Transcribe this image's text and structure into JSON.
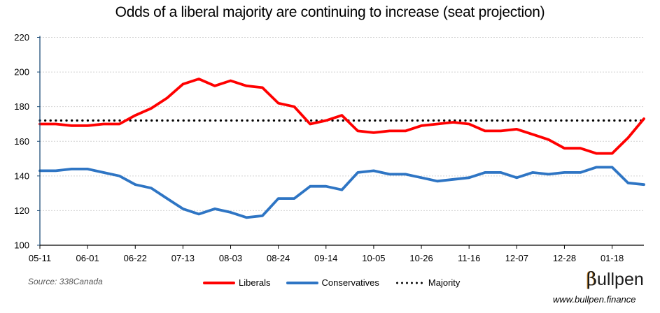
{
  "chart_data": {
    "type": "line",
    "title": "Odds of a liberal majority are continuing to increase (seat projection)",
    "xlabel": "",
    "ylabel": "",
    "ylim": [
      100,
      220
    ],
    "yticks": [
      100,
      120,
      140,
      160,
      180,
      200,
      220
    ],
    "grid": true,
    "legend_position": "bottom",
    "x": [
      "05-11",
      "05-18",
      "05-25",
      "06-01",
      "06-08",
      "06-15",
      "06-22",
      "06-29",
      "07-06",
      "07-13",
      "07-20",
      "07-27",
      "08-03",
      "08-10",
      "08-17",
      "08-24",
      "08-31",
      "09-07",
      "09-14",
      "09-21",
      "09-28",
      "10-05",
      "10-12",
      "10-19",
      "10-26",
      "11-02",
      "11-09",
      "11-16",
      "11-23",
      "11-30",
      "12-07",
      "12-14",
      "12-21",
      "12-28",
      "01-04",
      "01-11",
      "01-18",
      "01-25",
      "02-01"
    ],
    "xtick_labels": [
      "05-11",
      "06-01",
      "06-22",
      "07-13",
      "08-03",
      "08-24",
      "09-14",
      "10-05",
      "10-26",
      "11-16",
      "12-07",
      "12-28",
      "01-18"
    ],
    "series": [
      {
        "name": "Liberals",
        "color": "#ff0000",
        "style": "solid",
        "values": [
          170,
          170,
          169,
          169,
          170,
          170,
          175,
          179,
          185,
          193,
          196,
          192,
          195,
          192,
          191,
          182,
          180,
          170,
          172,
          175,
          166,
          165,
          166,
          166,
          169,
          170,
          171,
          170,
          166,
          166,
          167,
          164,
          161,
          156,
          156,
          153,
          153,
          162,
          173
        ]
      },
      {
        "name": "Conservatives",
        "color": "#2e75c4",
        "style": "solid",
        "values": [
          143,
          143,
          144,
          144,
          142,
          140,
          135,
          133,
          127,
          121,
          118,
          121,
          119,
          116,
          117,
          127,
          127,
          134,
          134,
          132,
          142,
          143,
          141,
          141,
          139,
          137,
          138,
          139,
          142,
          142,
          139,
          142,
          141,
          142,
          142,
          145,
          145,
          136,
          135
        ]
      },
      {
        "name": "Majority",
        "color": "#000000",
        "style": "dotted",
        "values": [
          172,
          172,
          172,
          172,
          172,
          172,
          172,
          172,
          172,
          172,
          172,
          172,
          172,
          172,
          172,
          172,
          172,
          172,
          172,
          172,
          172,
          172,
          172,
          172,
          172,
          172,
          172,
          172,
          172,
          172,
          172,
          172,
          172,
          172,
          172,
          172,
          172,
          172,
          172
        ]
      }
    ]
  },
  "footer": {
    "source": "Source: 338Canada",
    "logo_beta": "β",
    "logo_rest": "ullpen",
    "url": "www.bullpen.finance"
  }
}
